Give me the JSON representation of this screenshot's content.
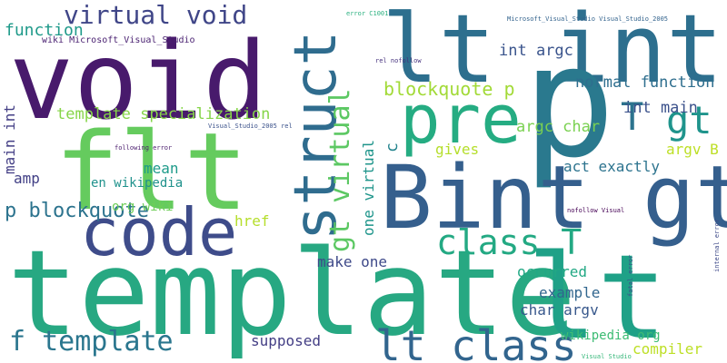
{
  "words": [
    {
      "text": "template",
      "color": "#27a882"
    },
    {
      "text": "lt",
      "color": "#1fa187"
    },
    {
      "text": "void",
      "color": "#481a6c"
    },
    {
      "text": "flt",
      "color": "#65cb5e"
    },
    {
      "text": "lt int",
      "color": "#2d6f8e"
    },
    {
      "text": "p",
      "color": "#2a798e"
    },
    {
      "text": "Bint gt",
      "color": "#355f8d"
    },
    {
      "text": "code",
      "color": "#3e4c8a"
    },
    {
      "text": "pre",
      "color": "#25ac82"
    },
    {
      "text": "struct",
      "color": "#2f6c8e"
    },
    {
      "text": "lt class",
      "color": "#32658e"
    },
    {
      "text": "class T",
      "color": "#23a983"
    },
    {
      "text": "virtual void",
      "color": "#404688"
    },
    {
      "text": "gt",
      "color": "#1f948c"
    },
    {
      "text": "T",
      "color": "#2c738e"
    },
    {
      "text": "f template",
      "color": "#2a768e"
    },
    {
      "text": "gt virtual",
      "color": "#5cc863"
    },
    {
      "text": "p blockquote",
      "color": "#2c738e"
    },
    {
      "text": "function",
      "color": "#1f9a8a"
    },
    {
      "text": "blockquote p",
      "color": "#a2da37"
    },
    {
      "text": "template specialization",
      "color": "#86d549"
    },
    {
      "text": "int main",
      "color": "#3b518b"
    },
    {
      "text": "normal function",
      "color": "#2e6e8e"
    },
    {
      "text": "int argc",
      "color": "#3a548c"
    },
    {
      "text": "argc char",
      "color": "#7ad151"
    },
    {
      "text": "main int",
      "color": "#433e85"
    },
    {
      "text": "mean",
      "color": "#1e9b8a"
    },
    {
      "text": "en wikipedia",
      "color": "#20928c"
    },
    {
      "text": "one virtual",
      "color": "#1f958b"
    },
    {
      "text": "make one",
      "color": "#3e4989"
    },
    {
      "text": "gives",
      "color": "#b5de2b"
    },
    {
      "text": "act exactly",
      "color": "#2c738e"
    },
    {
      "text": "argv B",
      "color": "#bddf26"
    },
    {
      "text": "c",
      "color": "#25858e"
    },
    {
      "text": "amp",
      "color": "#424086"
    },
    {
      "text": "org wiki",
      "color": "#6ece58"
    },
    {
      "text": "href",
      "color": "#b5de2b"
    },
    {
      "text": "occurred",
      "color": "#22a884"
    },
    {
      "text": "example",
      "color": "#31668e"
    },
    {
      "text": "char argv",
      "color": "#38588c"
    },
    {
      "text": "supposed",
      "color": "#433e85"
    },
    {
      "text": "wikipedia org",
      "color": "#3dbc74"
    },
    {
      "text": "compiler",
      "color": "#bddf26"
    },
    {
      "text": "wiki Microsoft_Visual_Studio",
      "color": "#481f70"
    },
    {
      "text": "Microsoft_Visual_Studio Visual_Studio_2005",
      "color": "#33638d"
    },
    {
      "text": "error C1001",
      "color": "#2ab07f"
    },
    {
      "text": "rel nofollow",
      "color": "#46327e"
    },
    {
      "text": "Visual_Studio_2005 rel",
      "color": "#3b528b"
    },
    {
      "text": "following error",
      "color": "#481a6c"
    },
    {
      "text": "nofollow Visual",
      "color": "#440154"
    },
    {
      "text": "internal error",
      "color": "#3e4a89"
    },
    {
      "text": "fatal error",
      "color": "#3b528b"
    },
    {
      "text": "Visual Studio",
      "color": "#35b779"
    }
  ]
}
